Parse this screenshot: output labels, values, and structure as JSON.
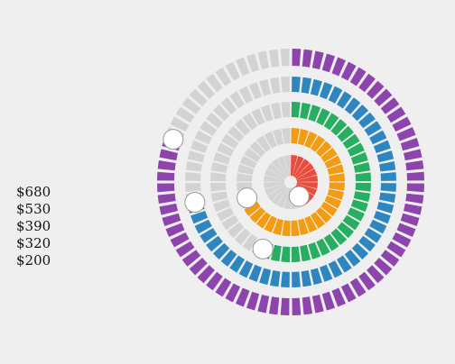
{
  "chart_data": {
    "type": "radial-progress",
    "rings": [
      {
        "label": "$680",
        "fraction": 0.81,
        "color": "#8e44ad"
      },
      {
        "label": "$530",
        "fraction": 0.72,
        "color": "#2e86c1"
      },
      {
        "label": "$390",
        "fraction": 0.56,
        "color": "#27ae60"
      },
      {
        "label": "$320",
        "fraction": 0.69,
        "color": "#f39c12"
      },
      {
        "label": "$200",
        "fraction": 0.43,
        "color": "#e74c3c"
      }
    ],
    "track_color": "#d3d3d3"
  }
}
